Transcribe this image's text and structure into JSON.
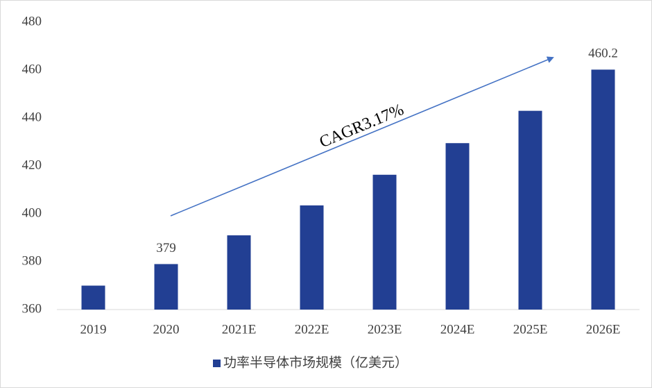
{
  "chart_data": {
    "type": "bar",
    "categories": [
      "2019",
      "2020",
      "2021E",
      "2022E",
      "2023E",
      "2024E",
      "2025E",
      "2026E"
    ],
    "series": [
      {
        "name": "功率半导体市场规模（亿美元）",
        "color": "#223f93",
        "values": [
          370,
          379,
          391,
          403.5,
          416.3,
          429.5,
          443,
          460.2
        ],
        "value_labels": [
          null,
          "379",
          null,
          null,
          null,
          null,
          null,
          "460.2"
        ]
      }
    ],
    "ylim": [
      360,
      480
    ],
    "yticks": [
      360,
      380,
      400,
      420,
      440,
      460,
      480
    ],
    "grid": false,
    "legend": "bottom",
    "annotation": "CAGR3.17%"
  }
}
